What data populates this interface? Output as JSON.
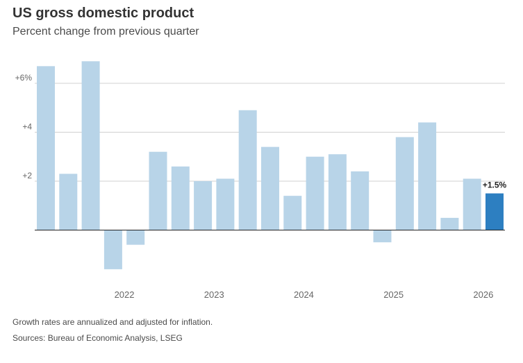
{
  "title": "US gross domestic product",
  "subtitle": "Percent change from previous quarter",
  "footnote": "Growth rates are annualized and adjusted for inflation.",
  "source": "Sources: Bureau of Economic Analysis, LSEG",
  "chart_data": {
    "type": "bar",
    "xlabel": "",
    "ylabel": "",
    "ylim": [
      -2,
      7.5
    ],
    "y_ticks": [
      {
        "value": 6,
        "label": "+6%"
      },
      {
        "value": 4,
        "label": "+4"
      },
      {
        "value": 2,
        "label": "+2"
      }
    ],
    "x_tick_labels": [
      {
        "label": "2022",
        "bar_index": 3.5
      },
      {
        "label": "2023",
        "bar_index": 7.5
      },
      {
        "label": "2024",
        "bar_index": 11.5
      },
      {
        "label": "2025",
        "bar_index": 15.5
      },
      {
        "label": "2026",
        "bar_index": 19.5
      }
    ],
    "values": [
      6.7,
      2.3,
      6.9,
      -1.6,
      -0.6,
      3.2,
      2.6,
      2.0,
      2.1,
      4.9,
      3.4,
      1.4,
      3.0,
      3.1,
      2.4,
      -0.5,
      3.8,
      4.4,
      0.5,
      2.1,
      1.5
    ],
    "highlight_index": 20,
    "highlight_label": "+1.5%",
    "grid": true,
    "colors": {
      "bar": "#b8d4e8",
      "highlight": "#2d7fc1",
      "grid": "#d0d0d0",
      "baseline": "#222222",
      "tick_text": "#666666"
    }
  }
}
